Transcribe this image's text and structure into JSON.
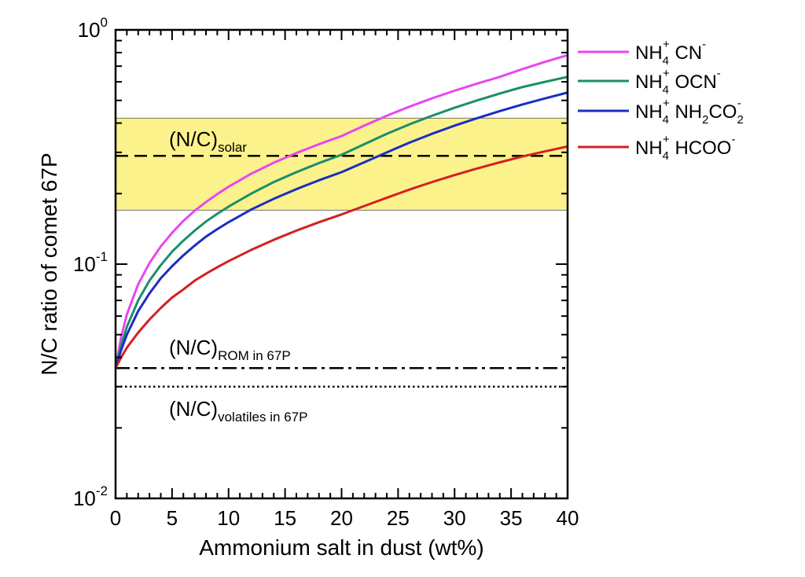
{
  "chart_data": {
    "type": "line",
    "xlabel": "Ammonium salt in dust (wt%)",
    "ylabel": "N/C ratio of comet 67P",
    "xlim": [
      0,
      40
    ],
    "ylim": [
      0.01,
      1
    ],
    "yscale": "log",
    "x_ticks": [
      0,
      5,
      10,
      15,
      20,
      25,
      30,
      35,
      40
    ],
    "y_ticks": [
      {
        "value": 0.01,
        "base": "10",
        "exp": "-2"
      },
      {
        "value": 0.1,
        "base": "10",
        "exp": "-1"
      },
      {
        "value": 1,
        "base": "10",
        "exp": "0"
      }
    ],
    "grid": false,
    "legend_position": "outside-right",
    "x": [
      0,
      0.5,
      1,
      2,
      3,
      4,
      5,
      6,
      7,
      8,
      9,
      10,
      12,
      14,
      16,
      18,
      20,
      22,
      24,
      26,
      28,
      30,
      32,
      34,
      36,
      38,
      40
    ],
    "series": [
      {
        "key": "cn",
        "name": {
          "a": "NH",
          "a_sub": "4",
          "a_sup": "+",
          "b": " CN",
          "b_sub": "",
          "b_sup": "-"
        },
        "color": "#e946f0",
        "values": [
          0.036,
          0.049,
          0.061,
          0.082,
          0.101,
          0.119,
          0.136,
          0.153,
          0.169,
          0.184,
          0.199,
          0.214,
          0.243,
          0.271,
          0.298,
          0.325,
          0.352,
          0.39,
          0.43,
          0.47,
          0.51,
          0.55,
          0.59,
          0.63,
          0.68,
          0.73,
          0.78
        ]
      },
      {
        "key": "ocn",
        "name": {
          "a": "NH",
          "a_sub": "4",
          "a_sup": "+",
          "b": " OCN",
          "b_sub": "",
          "b_sup": "-"
        },
        "color": "#1a8f6a",
        "values": [
          0.036,
          0.045,
          0.054,
          0.07,
          0.085,
          0.099,
          0.113,
          0.126,
          0.139,
          0.152,
          0.164,
          0.176,
          0.2,
          0.224,
          0.247,
          0.27,
          0.293,
          0.325,
          0.36,
          0.395,
          0.43,
          0.465,
          0.5,
          0.535,
          0.57,
          0.6,
          0.63
        ]
      },
      {
        "key": "nh2co2",
        "name": {
          "a": "NH",
          "a_sub": "4",
          "a_sup": "+",
          "b": " NH",
          "b_sub": "2",
          "b_sup": "",
          "c": "CO",
          "c_sub": "2",
          "c_sup": "-"
        },
        "color": "#1b2fbf",
        "values": [
          0.036,
          0.043,
          0.05,
          0.063,
          0.075,
          0.087,
          0.098,
          0.109,
          0.12,
          0.131,
          0.141,
          0.151,
          0.171,
          0.19,
          0.209,
          0.228,
          0.247,
          0.272,
          0.3,
          0.33,
          0.36,
          0.39,
          0.42,
          0.45,
          0.48,
          0.51,
          0.54
        ]
      },
      {
        "key": "hcoo",
        "name": {
          "a": "NH",
          "a_sub": "4",
          "a_sup": "+",
          "b": " HCOO",
          "b_sub": "",
          "b_sup": "-"
        },
        "color": "#d42020",
        "values": [
          0.036,
          0.04,
          0.044,
          0.051,
          0.058,
          0.065,
          0.072,
          0.078,
          0.085,
          0.091,
          0.097,
          0.103,
          0.115,
          0.127,
          0.139,
          0.151,
          0.163,
          0.177,
          0.192,
          0.208,
          0.224,
          0.24,
          0.256,
          0.272,
          0.288,
          0.303,
          0.318
        ]
      }
    ],
    "reference_lines": [
      {
        "key": "solar",
        "value": 0.29,
        "style": "dashed",
        "label": {
          "main": "(N/C)",
          "sub": "solar"
        }
      },
      {
        "key": "rom",
        "value": 0.036,
        "style": "dashdot",
        "label": {
          "main": "(N/C)",
          "sub": "ROM in 67P"
        }
      },
      {
        "key": "volatiles",
        "value": 0.03,
        "style": "dotted",
        "label": {
          "main": "(N/C)",
          "sub": "volatiles in 67P"
        }
      }
    ],
    "band": {
      "y_min": 0.17,
      "y_max": 0.42,
      "color": "#fbf28c"
    }
  }
}
